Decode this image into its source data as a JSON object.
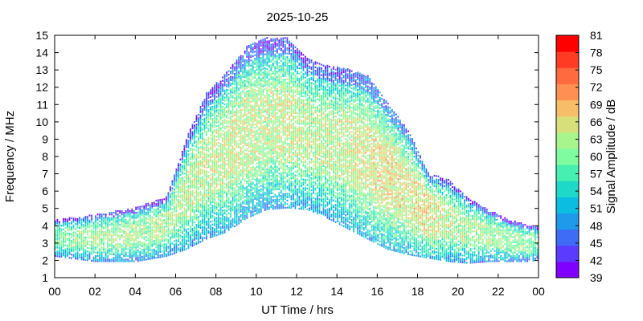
{
  "chart_data": {
    "type": "heatmap",
    "title": "2025-10-25",
    "xlabel": "UT Time / hrs",
    "ylabel": "Frequency / MHz",
    "colorbar_label": "Signal Amplitude / dB",
    "xlim": [
      0,
      24
    ],
    "ylim": [
      1,
      15
    ],
    "x_tick_labels": [
      "00",
      "02",
      "04",
      "06",
      "08",
      "10",
      "12",
      "14",
      "16",
      "18",
      "20",
      "22",
      "00"
    ],
    "y_tick_values": [
      1,
      2,
      3,
      4,
      5,
      6,
      7,
      8,
      9,
      10,
      11,
      12,
      13,
      14,
      15
    ],
    "colorbar": {
      "values": [
        39,
        42,
        45,
        48,
        51,
        54,
        57,
        60,
        63,
        66,
        69,
        72,
        75,
        78,
        81
      ],
      "colors": [
        "#8000ff",
        "#5b3cff",
        "#3f6cf6",
        "#1f99ea",
        "#0bbde0",
        "#1ed8c8",
        "#47f0b0",
        "#7ffca0",
        "#a8f58e",
        "#d6df7a",
        "#f7bd68",
        "#ff8f52",
        "#ff6a3f",
        "#ff3b24",
        "#ff0000"
      ]
    },
    "grid": false,
    "time_resolution_hrs": 0.1,
    "band_profile": {
      "description": "approximate occupied frequency band (MHz) vs UT hour",
      "hours": [
        0,
        2,
        4,
        5.5,
        6.5,
        7.5,
        8.5,
        9.5,
        10.5,
        11.5,
        12.5,
        13.5,
        14.5,
        15.5,
        16.5,
        17.5,
        18.5,
        19.5,
        20.5,
        21.5,
        22.5,
        23.5,
        24
      ],
      "low_mhz": [
        2.2,
        1.9,
        1.9,
        2.2,
        2.6,
        3.2,
        3.6,
        4.4,
        4.9,
        5.0,
        4.9,
        4.4,
        3.8,
        3.2,
        2.6,
        2.3,
        2.1,
        1.9,
        1.8,
        1.9,
        1.9,
        1.9,
        2.0
      ],
      "high_mhz": [
        4.3,
        4.6,
        5.0,
        5.6,
        9.0,
        11.6,
        12.8,
        14.3,
        14.8,
        14.8,
        13.6,
        13.2,
        13.0,
        12.6,
        11.0,
        9.5,
        7.0,
        6.6,
        5.6,
        4.9,
        4.3,
        4.0,
        3.9
      ],
      "peak_amplitude_db": [
        60,
        62,
        62,
        62,
        63,
        63,
        64,
        64,
        63,
        64,
        63,
        63,
        64,
        65,
        66,
        65,
        66,
        63,
        62,
        62,
        61,
        61,
        60
      ]
    }
  }
}
